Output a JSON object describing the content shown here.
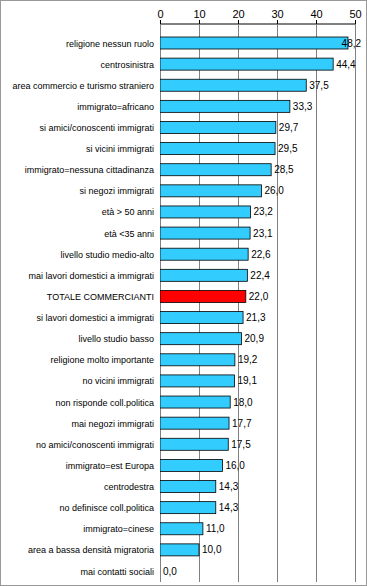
{
  "chart_data": {
    "type": "bar",
    "orientation": "horizontal",
    "categories": [
      "religione nessun ruolo",
      "centrosinistra",
      "area commercio e turismo straniero",
      "immigrato=africano",
      "si amici/conoscenti immigrati",
      "si vicini immigrati",
      "immigrato=nessuna cittadinanza",
      "si negozi immigrati",
      "età > 50 anni",
      "età <35 anni",
      "livello studio medio-alto",
      "mai lavori domestici a immigrati",
      "TOTALE COMMERCIANTI",
      "si lavori domestici a immigrati",
      "livello studio basso",
      "religione molto importante",
      "no vicini immigrati",
      "non risponde coll.politica",
      "mai negozi immigrati",
      "no amici/conoscenti immigrati",
      "immigrato=est Europa",
      "centrodestra",
      "no definisce coll.politica",
      "immigrato=cinese",
      "area a bassa densità migratoria",
      "mai contatti sociali"
    ],
    "values": [
      48.2,
      44.4,
      37.5,
      33.3,
      29.7,
      29.5,
      28.5,
      26.0,
      23.2,
      23.1,
      22.6,
      22.4,
      22.0,
      21.3,
      20.9,
      19.2,
      19.1,
      18.0,
      17.7,
      17.5,
      16.0,
      14.3,
      14.3,
      11.0,
      10.0,
      0.0
    ],
    "value_labels": [
      "48,2",
      "44,4",
      "37,5",
      "33,3",
      "29,7",
      "29,5",
      "28,5",
      "26,0",
      "23,2",
      "23,1",
      "22,6",
      "22,4",
      "22,0",
      "21,3",
      "20,9",
      "19,2",
      "19,1",
      "18,0",
      "17,7",
      "17,5",
      "16,0",
      "14,3",
      "14,3",
      "11,0",
      "10,0",
      "0,0"
    ],
    "colors": [
      "#33ccff",
      "#33ccff",
      "#33ccff",
      "#33ccff",
      "#33ccff",
      "#33ccff",
      "#33ccff",
      "#33ccff",
      "#33ccff",
      "#33ccff",
      "#33ccff",
      "#33ccff",
      "#ff0000",
      "#33ccff",
      "#33ccff",
      "#33ccff",
      "#33ccff",
      "#33ccff",
      "#33ccff",
      "#33ccff",
      "#33ccff",
      "#33ccff",
      "#33ccff",
      "#33ccff",
      "#33ccff",
      "#33ccff"
    ],
    "xlim": [
      0,
      50
    ],
    "xticks": [
      0,
      10,
      20,
      30,
      40,
      50
    ],
    "grid": true,
    "data_labels": true
  }
}
